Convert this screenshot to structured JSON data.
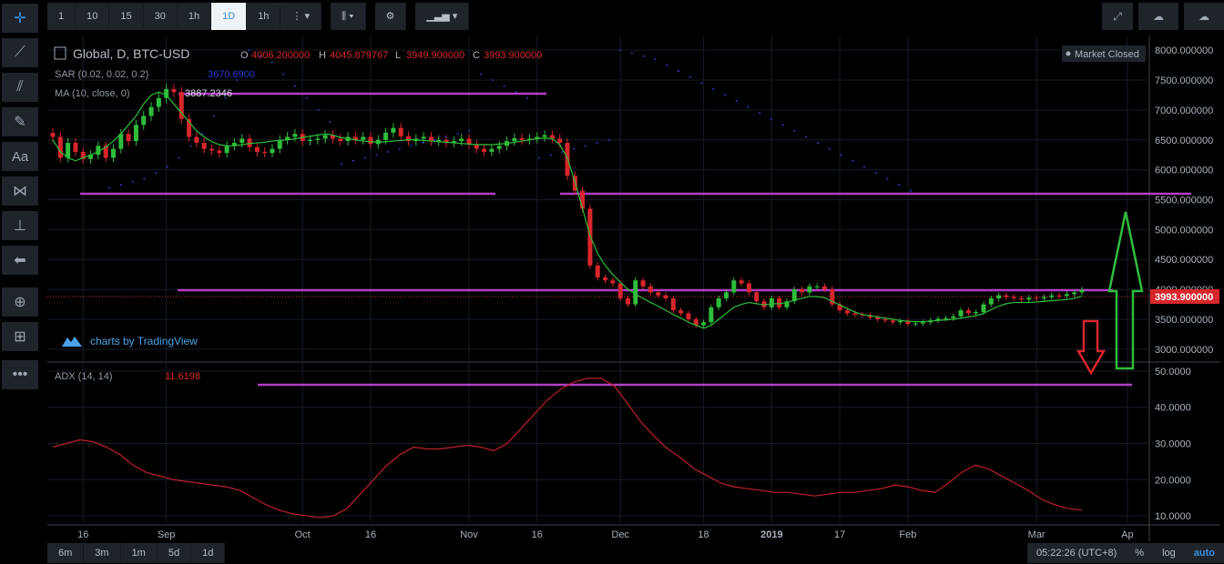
{
  "toolbar": {
    "intervals": [
      "1",
      "10",
      "15",
      "30",
      "1h",
      "1D",
      "1h"
    ],
    "active_interval": "1D"
  },
  "legend": {
    "symbol": "Global, D, BTC-USD",
    "o_label": "O",
    "o_value": "4006.200000",
    "h_label": "H",
    "h_value": "4045.879767",
    "l_label": "L",
    "l_value": "3949.900000",
    "c_label": "C",
    "c_value": "3993.900000",
    "sar_label": "SAR (0.02, 0.02, 0.2)",
    "sar_value": "3670.6900",
    "ma_label": "MA (10, close, 0)",
    "ma_value": "3887.2346",
    "adx_label": "ADX (14, 14)",
    "adx_value": "11.6198",
    "market_status": "Market Closed",
    "branding": "charts by TradingView",
    "last_price": "3993.900000"
  },
  "bottom": {
    "ranges": [
      "6m",
      "3m",
      "1m",
      "5d",
      "1d"
    ],
    "time": "05:22:26 (UTC+8)",
    "percent": "%",
    "log": "log",
    "auto": "auto"
  },
  "colors": {
    "up": "#2fbd3c",
    "down": "#d8262c",
    "ma": "#2fbd3c",
    "sar": "#2f3dcc",
    "adx": "#c0202a",
    "level": "#b13fc4",
    "accent": "#3a8dde"
  },
  "chart_data": [
    {
      "type": "line",
      "title": "Global, D, BTC-USD",
      "y_ticks": [
        "8000.000000",
        "7500.000000",
        "7000.000000",
        "6500.000000",
        "6000.000000",
        "5500.000000",
        "5000.000000",
        "4500.000000",
        "4000.000000",
        "3500.000000",
        "3000.000000"
      ],
      "ylim": [
        2800,
        8200
      ],
      "x_ticks": [
        "16",
        "Sep",
        "Oct",
        "16",
        "Nov",
        "16",
        "Dec",
        "18",
        "2019",
        "17",
        "Feb",
        "Mar",
        "Ap"
      ],
      "series": [
        {
          "name": "BTC-USD",
          "kind": "candlestick",
          "close": [
            6550,
            6200,
            6450,
            6300,
            6180,
            6250,
            6400,
            6200,
            6350,
            6600,
            6480,
            6750,
            6900,
            7050,
            7200,
            7350,
            7300,
            6850,
            6550,
            6450,
            6350,
            6320,
            6280,
            6400,
            6450,
            6520,
            6380,
            6300,
            6280,
            6350,
            6500,
            6550,
            6600,
            6480,
            6500,
            6520,
            6580,
            6520,
            6480,
            6550,
            6500,
            6550,
            6430,
            6500,
            6620,
            6700,
            6560,
            6480,
            6520,
            6550,
            6480,
            6500,
            6450,
            6480,
            6520,
            6420,
            6350,
            6300,
            6350,
            6400,
            6480,
            6530,
            6500,
            6520,
            6550,
            6580,
            6520,
            6450,
            5900,
            5650,
            5350,
            4400,
            4200,
            4150,
            4100,
            3850,
            3750,
            4150,
            4050,
            3950,
            3900,
            3850,
            3650,
            3600,
            3500,
            3400,
            3450,
            3700,
            3850,
            3950,
            4150,
            4100,
            3950,
            3800,
            3700,
            3850,
            3700,
            3800,
            4000,
            3950,
            4050,
            4050,
            4000,
            3750,
            3650,
            3600,
            3580,
            3570,
            3530,
            3500,
            3480,
            3450,
            3470,
            3420,
            3430,
            3450,
            3480,
            3510,
            3520,
            3550,
            3650,
            3600,
            3620,
            3750,
            3850,
            3900,
            3870,
            3850,
            3830,
            3860,
            3850,
            3870,
            3900,
            3890,
            3920,
            3950,
            3994
          ]
        },
        {
          "name": "MA (10, close, 0)",
          "values": [
            6500,
            6300,
            6200,
            6150,
            6200,
            6250,
            6300,
            6380,
            6480,
            6600,
            6750,
            6900,
            7100,
            7250,
            7300,
            7250,
            7100,
            6950,
            6800,
            6650,
            6550,
            6470,
            6420,
            6400,
            6400,
            6420,
            6440,
            6450,
            6460,
            6480,
            6490,
            6500,
            6520,
            6540,
            6560,
            6580,
            6600,
            6580,
            6540,
            6520,
            6500,
            6480,
            6470,
            6460,
            6470,
            6480,
            6490,
            6500,
            6500,
            6490,
            6480,
            6470,
            6460,
            6450,
            6440,
            6430,
            6420,
            6420,
            6420,
            6430,
            6440,
            6460,
            6480,
            6500,
            6520,
            6530,
            6520,
            6420,
            6200,
            5800,
            5350,
            4900,
            4600,
            4400,
            4250,
            4120,
            4000,
            3920,
            3850,
            3780,
            3720,
            3650,
            3580,
            3520,
            3450,
            3400,
            3350,
            3400,
            3500,
            3600,
            3700,
            3750,
            3780,
            3760,
            3740,
            3760,
            3760,
            3780,
            3820,
            3850,
            3880,
            3880,
            3860,
            3800,
            3740,
            3680,
            3620,
            3580,
            3560,
            3540,
            3520,
            3500,
            3480,
            3470,
            3460,
            3460,
            3470,
            3480,
            3490,
            3500,
            3520,
            3540,
            3560,
            3600,
            3660,
            3720,
            3760,
            3780,
            3780,
            3780,
            3790,
            3800,
            3810,
            3820,
            3830,
            3850,
            3887
          ]
        },
        {
          "name": "SAR (0.02, 0.02, 0.2)",
          "values": [
            5700,
            5750,
            5800,
            5850,
            5950,
            6050,
            6200,
            6400,
            6600,
            6900,
            7200,
            7500,
            8000,
            7900,
            7800,
            7600,
            7400,
            7200,
            7000,
            6800,
            6100,
            6150,
            6200,
            6250,
            6300,
            6350,
            6400,
            6450,
            6500,
            6550,
            6600,
            6650,
            7600,
            7500,
            7400,
            7300,
            7200,
            6200,
            6250,
            6300,
            6350,
            6400,
            6450,
            6500,
            8000,
            7950,
            7900,
            7850,
            7750,
            7650,
            7550,
            7450,
            7350,
            7250,
            7150,
            7050,
            6950,
            6850,
            6750,
            6650,
            6550,
            6450,
            6350,
            6250,
            6150,
            6050,
            5950,
            5850,
            5750,
            5650
          ]
        }
      ]
    },
    {
      "type": "line",
      "title": "ADX (14, 14)",
      "y_ticks": [
        "50.0000",
        "40.0000",
        "30.0000",
        "20.0000",
        "10.0000"
      ],
      "ylim": [
        8,
        52
      ],
      "series": [
        {
          "name": "ADX (14, 14)",
          "values": [
            29,
            30,
            31,
            30.5,
            29,
            27,
            24,
            22,
            21,
            20,
            19.5,
            19,
            18.5,
            18,
            17,
            15,
            13,
            11.5,
            10.5,
            10,
            9.5,
            10,
            12,
            16,
            20,
            24,
            27,
            29,
            28.5,
            28.5,
            29,
            29.5,
            29,
            28,
            30,
            34,
            38,
            42,
            45,
            47,
            48,
            48,
            46,
            41,
            36,
            32,
            28.5,
            26,
            23,
            21,
            19,
            18,
            17.5,
            17,
            16.5,
            16.5,
            16,
            15.5,
            16,
            16.5,
            16.5,
            17,
            17.5,
            18.5,
            18,
            17,
            16.5,
            19,
            22,
            24,
            23,
            21,
            19,
            17,
            14.5,
            13,
            12,
            11.6
          ]
        }
      ]
    }
  ]
}
